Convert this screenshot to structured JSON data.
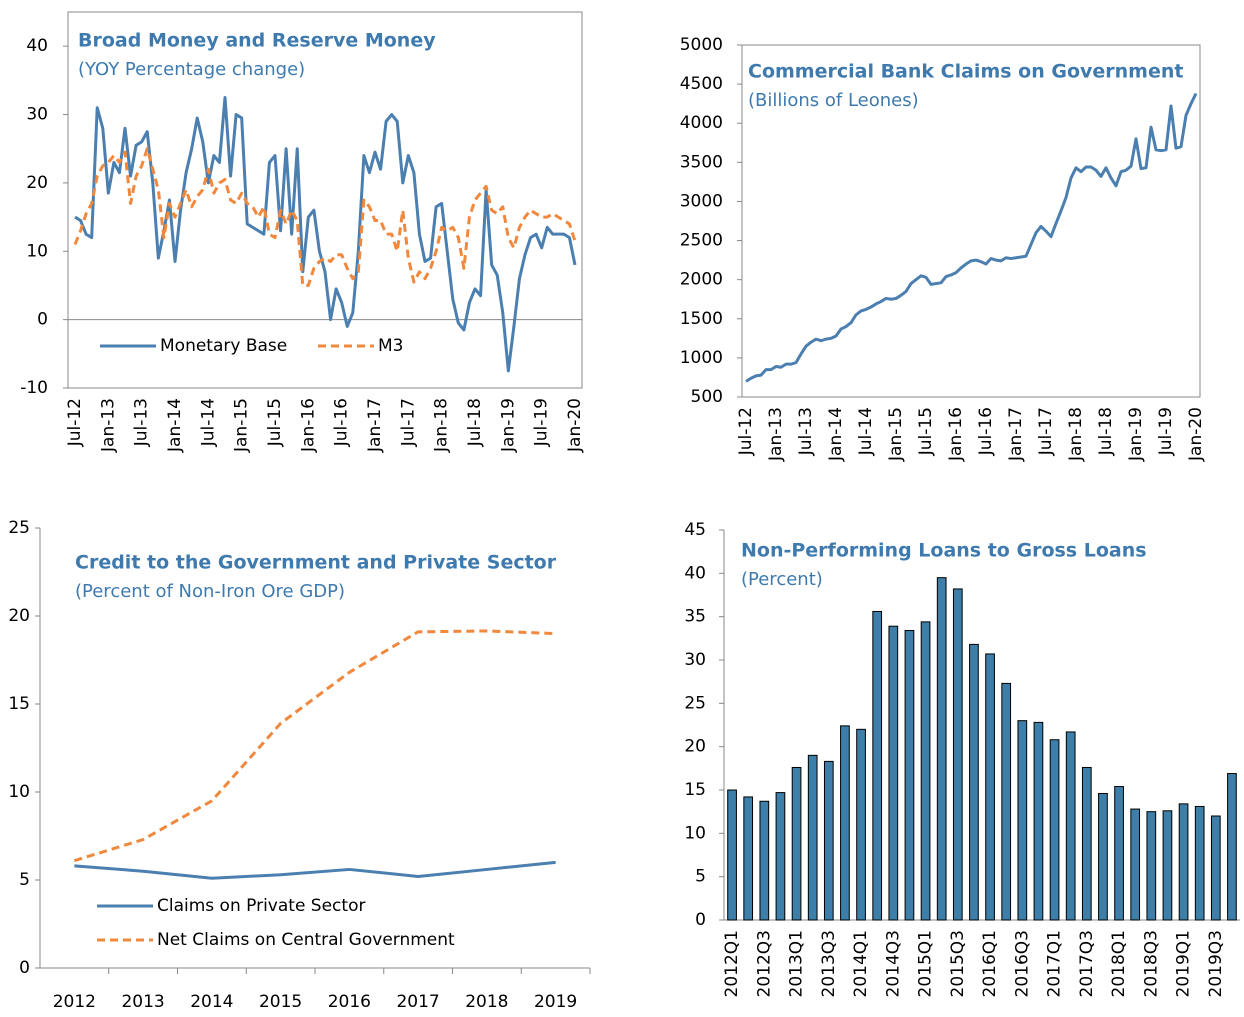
{
  "chart_data": [
    {
      "type": "line",
      "title": "Broad Money and Reserve Money",
      "subtitle": "(YOY Percentage change)",
      "frame": true,
      "categories": [
        "Jul-12",
        null,
        null,
        null,
        null,
        null,
        "Jan-13",
        null,
        null,
        null,
        null,
        null,
        "Jul-13",
        null,
        null,
        null,
        null,
        null,
        "Jan-14",
        null,
        null,
        null,
        null,
        null,
        "Jul-14",
        null,
        null,
        null,
        null,
        null,
        "Jan-15",
        null,
        null,
        null,
        null,
        null,
        "Jul-15",
        null,
        null,
        null,
        null,
        null,
        "Jan-16",
        null,
        null,
        null,
        null,
        null,
        "Jul-16",
        null,
        null,
        null,
        null,
        null,
        "Jan-17",
        null,
        null,
        null,
        null,
        null,
        "Jul-17",
        null,
        null,
        null,
        null,
        null,
        "Jan-18",
        null,
        null,
        null,
        null,
        null,
        "Jul-18",
        null,
        null,
        null,
        null,
        null,
        "Jan-19",
        null,
        null,
        null,
        null,
        null,
        "Jul-19",
        null,
        null,
        null,
        null,
        null,
        "Jan-20"
      ],
      "series": [
        {
          "name": "Monetary Base",
          "color": "#4a7fb0",
          "line_style": "solid",
          "values": [
            15,
            14.5,
            12.5,
            12,
            31,
            28,
            18.5,
            23,
            21.5,
            28,
            21,
            25.5,
            26,
            27.5,
            20,
            9,
            13,
            17.5,
            8.5,
            16,
            21.5,
            25,
            29.5,
            26,
            20,
            24,
            23,
            32.5,
            21,
            30,
            29.5,
            14,
            13.5,
            13,
            12.5,
            23,
            24,
            13,
            25,
            12.5,
            25,
            7,
            15,
            16,
            10,
            7,
            0,
            4.5,
            2.5,
            -1,
            1,
            10,
            24,
            21.5,
            24.5,
            22,
            29,
            30,
            29,
            20,
            24,
            21.5,
            12.5,
            8.5,
            9,
            16.5,
            17,
            10,
            3,
            -0.5,
            -1.5,
            2.5,
            4.5,
            3.5,
            19,
            8,
            6.5,
            1,
            -7.5,
            -1,
            6,
            9.5,
            12,
            12.5,
            10.5,
            13.5,
            12.5,
            12.5,
            12.5,
            12,
            8
          ]
        },
        {
          "name": "M3",
          "color": "#f0883e",
          "line_style": "dashed",
          "values": [
            11,
            13,
            15.5,
            17,
            21,
            22.5,
            23,
            24,
            23,
            24.5,
            17,
            21,
            22.5,
            25,
            22,
            19,
            12,
            17,
            15,
            17,
            19,
            16.5,
            18,
            19,
            22,
            18.5,
            20,
            20.5,
            17.5,
            17,
            18.5,
            17,
            16.5,
            15,
            16.5,
            12.5,
            12,
            16,
            14,
            16,
            14.5,
            5,
            5,
            7.5,
            8.5,
            9,
            8.5,
            9.5,
            9.5,
            7.5,
            6,
            7,
            17.5,
            16.5,
            14.5,
            14.5,
            12.5,
            12.5,
            10,
            16,
            9,
            5.5,
            7,
            6,
            7.5,
            10,
            13.5,
            13,
            13.5,
            12,
            7.5,
            15,
            17.5,
            18.5,
            19.5,
            16,
            15.5,
            16.5,
            12,
            10.5,
            13.5,
            15,
            16,
            15.5,
            15,
            15,
            15.5,
            15,
            14.5,
            14,
            11.5
          ]
        }
      ],
      "ylim": [
        -10,
        45
      ],
      "yticks": [
        -10,
        0,
        10,
        20,
        30,
        40
      ]
    },
    {
      "type": "line",
      "title": "Commercial Bank Claims on Government",
      "subtitle": "(Billions of Leones)",
      "frame": true,
      "categories": [
        "Jul-12",
        null,
        null,
        null,
        null,
        null,
        "Jan-13",
        null,
        null,
        null,
        null,
        null,
        "Jul-13",
        null,
        null,
        null,
        null,
        null,
        "Jan-14",
        null,
        null,
        null,
        null,
        null,
        "Jul-14",
        null,
        null,
        null,
        null,
        null,
        "Jan-15",
        null,
        null,
        null,
        null,
        null,
        "Jul-15",
        null,
        null,
        null,
        null,
        null,
        "Jan-16",
        null,
        null,
        null,
        null,
        null,
        "Jul-16",
        null,
        null,
        null,
        null,
        null,
        "Jan-17",
        null,
        null,
        null,
        null,
        null,
        "Jul-17",
        null,
        null,
        null,
        null,
        null,
        "Jan-18",
        null,
        null,
        null,
        null,
        null,
        "Jul-18",
        null,
        null,
        null,
        null,
        null,
        "Jan-19",
        null,
        null,
        null,
        null,
        null,
        "Jul-19",
        null,
        null,
        null,
        null,
        null,
        "Jan-20"
      ],
      "values": [
        700,
        740,
        770,
        780,
        850,
        850,
        890,
        880,
        920,
        920,
        940,
        1050,
        1150,
        1200,
        1240,
        1220,
        1240,
        1250,
        1280,
        1370,
        1400,
        1450,
        1550,
        1600,
        1620,
        1650,
        1690,
        1720,
        1760,
        1750,
        1760,
        1800,
        1850,
        1950,
        2000,
        2050,
        2030,
        1940,
        1950,
        1960,
        2040,
        2060,
        2090,
        2150,
        2200,
        2240,
        2250,
        2230,
        2200,
        2270,
        2250,
        2240,
        2280,
        2270,
        2280,
        2290,
        2300,
        2450,
        2600,
        2680,
        2620,
        2550,
        2720,
        2880,
        3050,
        3300,
        3430,
        3380,
        3440,
        3440,
        3400,
        3320,
        3430,
        3300,
        3200,
        3380,
        3400,
        3450,
        3800,
        3420,
        3430,
        3950,
        3660,
        3650,
        3660,
        4220,
        3680,
        3700,
        4100,
        4250,
        4380
      ],
      "color": "#4a7fb0",
      "ylim": [
        500,
        5000
      ],
      "yticks": [
        500,
        1000,
        1500,
        2000,
        2500,
        3000,
        3500,
        4000,
        4500,
        5000
      ]
    },
    {
      "type": "line",
      "title": "Credit to the Government and Private Sector",
      "subtitle": "(Percent of Non-Iron Ore GDP)",
      "frame": false,
      "categories": [
        "2012",
        "2013",
        "2014",
        "2015",
        "2016",
        "2017",
        "2018",
        "2019"
      ],
      "series": [
        {
          "name": "Claims on Private Sector",
          "color": "#4a7fb0",
          "line_style": "solid",
          "values": [
            5.8,
            5.5,
            5.1,
            5.3,
            5.6,
            5.2,
            5.6,
            6.0
          ]
        },
        {
          "name": "Net Claims on Central Government",
          "color": "#f0883e",
          "line_style": "dashed",
          "values": [
            6.1,
            7.3,
            9.5,
            13.9,
            16.8,
            19.1,
            19.15,
            19.0
          ]
        }
      ],
      "ylim": [
        0,
        25
      ],
      "yticks": [
        0,
        5,
        10,
        15,
        20,
        25
      ]
    },
    {
      "type": "bar",
      "title": "Non-Performing Loans to Gross Loans",
      "subtitle": "(Percent)",
      "frame": false,
      "categories": [
        "2012Q1",
        null,
        "2012Q3",
        null,
        "2013Q1",
        null,
        "2013Q3",
        null,
        "2014Q1",
        null,
        "2014Q3",
        null,
        "2015Q1",
        null,
        "2015Q3",
        null,
        "2016Q1",
        null,
        "2016Q3",
        null,
        "2017Q1",
        null,
        "2017Q3",
        null,
        "2018Q1",
        null,
        "2018Q3",
        null,
        "2019Q1",
        null,
        "2019Q3",
        null
      ],
      "values": [
        15,
        14.2,
        13.7,
        14.7,
        17.6,
        19,
        18.3,
        22.4,
        22,
        35.6,
        33.9,
        33.4,
        34.4,
        39.5,
        38.2,
        31.8,
        30.7,
        27.3,
        23,
        22.8,
        20.8,
        21.7,
        17.6,
        14.6,
        15.4,
        12.8,
        12.5,
        12.6,
        13.4,
        13.1,
        12,
        16.9
      ],
      "color": "#3d7fa8",
      "ylim": [
        0,
        45
      ],
      "yticks": [
        0,
        5,
        10,
        15,
        20,
        25,
        30,
        35,
        40,
        45
      ]
    }
  ]
}
